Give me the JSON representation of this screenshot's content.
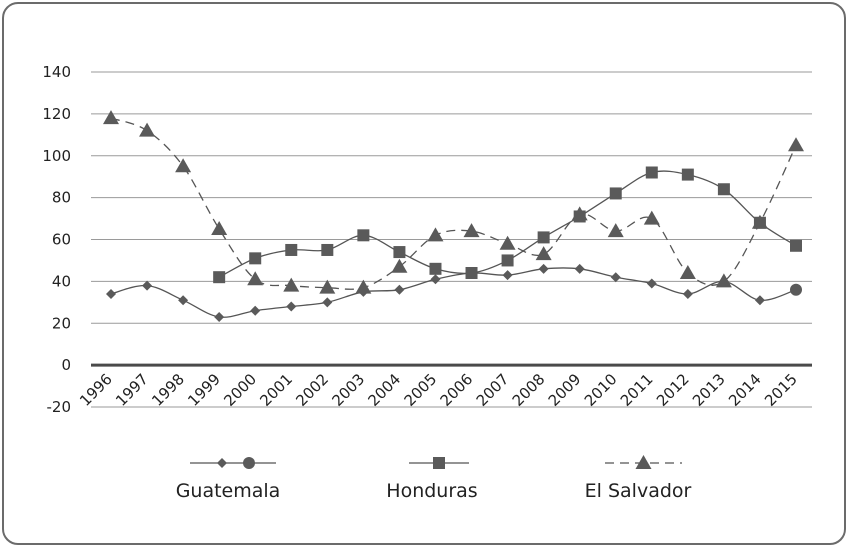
{
  "chart_data": {
    "type": "line",
    "title": "",
    "xlabel": "",
    "ylabel": "",
    "x": [
      "1996",
      "1997",
      "1998",
      "1999",
      "2000",
      "2001",
      "2002",
      "2003",
      "2004",
      "2005",
      "2006",
      "2007",
      "2008",
      "2009",
      "2010",
      "2011",
      "2012",
      "2013",
      "2014",
      "2015"
    ],
    "ylim": [
      -20,
      140
    ],
    "yticks": [
      "140",
      "120",
      "100",
      "80",
      "60",
      "40",
      "20",
      "0",
      "-20"
    ],
    "grid": true,
    "legend_position": "bottom",
    "series": [
      {
        "name": "Guatemala",
        "marker": "diamond",
        "last_marker": "circle",
        "line": "solid",
        "values": [
          34,
          38,
          31,
          23,
          26,
          28,
          30,
          35,
          36,
          41,
          44,
          43,
          46,
          46,
          42,
          39,
          34,
          40,
          31,
          36
        ]
      },
      {
        "name": "Honduras",
        "marker": "square",
        "line": "solid",
        "values": [
          null,
          null,
          null,
          42,
          51,
          55,
          55,
          62,
          54,
          46,
          44,
          50,
          61,
          71,
          82,
          92,
          91,
          84,
          68,
          57
        ]
      },
      {
        "name": "El Salvador",
        "marker": "triangle",
        "line": "dashed",
        "values": [
          118,
          112,
          95,
          65,
          41,
          38,
          37,
          37,
          47,
          62,
          64,
          58,
          53,
          72,
          64,
          70,
          44,
          40,
          68,
          105
        ]
      }
    ],
    "colors": {
      "line": "#555555",
      "marker": "#5a5a5a",
      "grid": "#9a9a9a",
      "zero_axis": "#4a4a4a"
    }
  }
}
